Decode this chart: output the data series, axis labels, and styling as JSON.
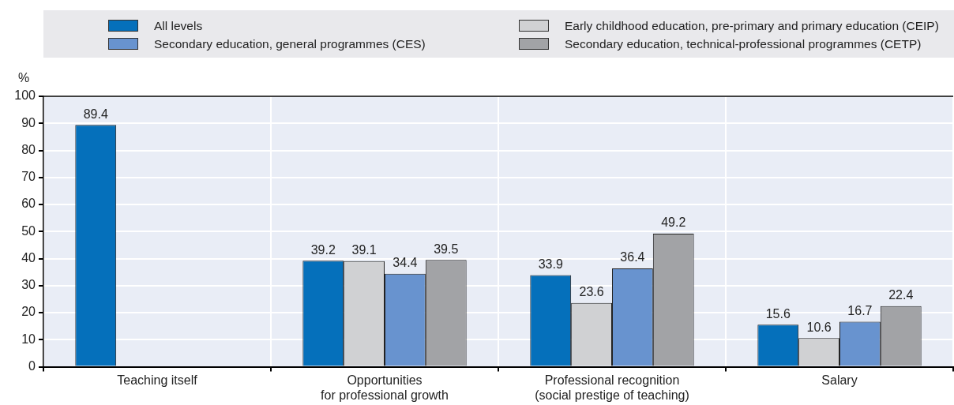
{
  "chart_data": {
    "type": "bar",
    "ylabel": "%",
    "categories": [
      "Teaching itself",
      "Opportunities\nfor professional growth",
      "Professional recognition\n(social prestige of teaching)",
      "Salary"
    ],
    "series": [
      {
        "name": "All levels",
        "color": "#0570bb",
        "values": [
          89.4,
          39.2,
          33.9,
          15.6
        ]
      },
      {
        "name": "Early childhood education, pre-primary and primary education (CEIP)",
        "color": "#d0d1d3",
        "values": [
          null,
          39.1,
          23.6,
          10.6
        ]
      },
      {
        "name": "Secondary education, general programmes (CES)",
        "color": "#6893cf",
        "values": [
          null,
          34.4,
          36.4,
          16.7
        ]
      },
      {
        "name": "Secondary education, technical-professional programmes (CETP)",
        "color": "#a2a3a6",
        "values": [
          null,
          39.5,
          49.2,
          22.4
        ]
      }
    ],
    "ylim": [
      0,
      100
    ],
    "yticks": [
      0,
      10,
      20,
      30,
      40,
      50,
      60,
      70,
      80,
      90,
      100
    ],
    "grid": true,
    "legend": "top",
    "data_labels": true
  }
}
